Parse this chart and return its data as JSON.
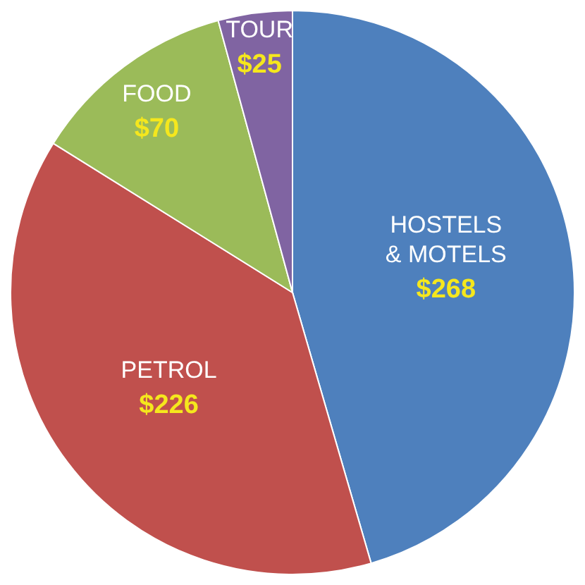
{
  "chart_data": {
    "type": "pie",
    "categories": [
      "HOSTELS & MOTELS",
      "PETROL",
      "FOOD",
      "TOUR"
    ],
    "values": [
      268,
      226,
      70,
      25
    ],
    "value_labels": [
      "$268",
      "$226",
      "$70",
      "$25"
    ],
    "colors": [
      "#4e80bd",
      "#c0504d",
      "#9bbb59",
      "#8064a2"
    ]
  }
}
